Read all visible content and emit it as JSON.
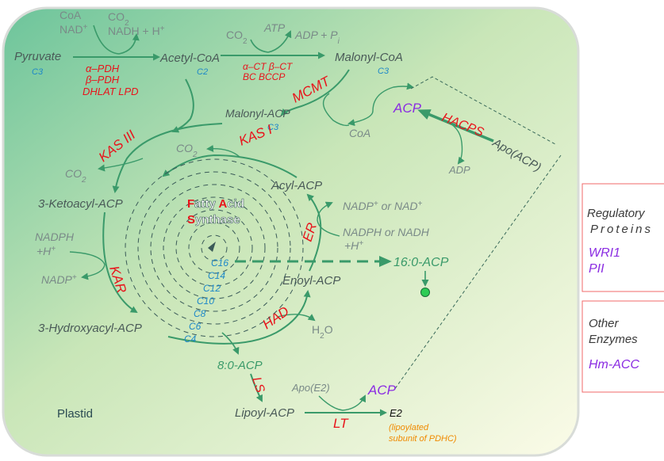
{
  "compartment": "Plastid",
  "metabolites": {
    "pyruvate": "Pyruvate",
    "acetyl_coa": "Acetyl-CoA",
    "malonyl_coa": "Malonyl-CoA",
    "malonyl_acp": "Malonyl-ACP",
    "ketoacyl_acp": "3-Ketoacyl-ACP",
    "hydroxyacyl_acp": "3-Hydroxyacyl-ACP",
    "enoyl_acp": "Enoyl-ACP",
    "acyl_acp": "Acyl-ACP",
    "palmitoyl_acp": "16:0-ACP",
    "octanoyl_acp": "8:0-ACP",
    "lipoyl_acp": "Lipoyl-ACP",
    "acp": "ACP",
    "acp2": "ACP",
    "apo_acp": "Apo(ACP)",
    "apo_e2": "Apo(E2)",
    "e2": "E2",
    "e2_note_1": "(lipoylated",
    "e2_note_2": "subunit of PDHC)"
  },
  "carbons": {
    "pyruvate": "C3",
    "acetyl_coa": "C2",
    "malonyl_coa": "C3",
    "malonyl_acp": "C3"
  },
  "cofactors": {
    "coa_top": "CoA",
    "nad_top": "NAD",
    "co2_pdh": "CO",
    "nadh_h": "NADH + H",
    "co2_acc": "CO",
    "atp": "ATP",
    "adp_pi": "ADP + P",
    "coa_mcmt": "CoA",
    "adp_hacps": "ADP",
    "co2_kas3": "CO",
    "co2_kas1": "CO",
    "nadph_kar": "NADPH",
    "h_kar": "+H",
    "nadp_kar": "NADP",
    "nadp_or_nad": "NADP",
    "or_nad": " or NAD",
    "nadph_or_nadh": "NADPH or NADH",
    "h_er": "+H",
    "h2o": "H",
    "h2o_o": "O"
  },
  "enzymes": {
    "pdh": [
      "α–PDH",
      "β–PDH",
      "DHLAT LPD"
    ],
    "acc": [
      "α–CT β–CT",
      "BC  BCCP"
    ],
    "mcmt": "MCMT",
    "hacps": "HACPS",
    "kas3": "KAS III",
    "kas1": "KAS I",
    "kar": "KAR",
    "er": "ER",
    "had": "HAD",
    "ls": "LS",
    "lt": "LT"
  },
  "fas": {
    "line1_a": "F",
    "line1_b": "atty ",
    "line1_c": "A",
    "line1_d": "cid",
    "line2_a": "S",
    "line2_b": "ynthase"
  },
  "chain_lengths": [
    "C16",
    "C14",
    "C12",
    "C10",
    "C8",
    "C6",
    "C4"
  ],
  "panels": {
    "regulatory": {
      "title_1": "Regulatory",
      "title_2": "Proteins",
      "items": [
        "WRI1",
        "PII"
      ]
    },
    "other": {
      "title_1": "Other",
      "title_2": "Enzymes",
      "items": [
        "Hm-ACC"
      ]
    }
  },
  "colors": {
    "arrow": "#3a9a6a",
    "enzyme": "#e8141b",
    "carbon": "#1e88c8",
    "regulator": "#8a2be2",
    "note": "#f08a00"
  }
}
